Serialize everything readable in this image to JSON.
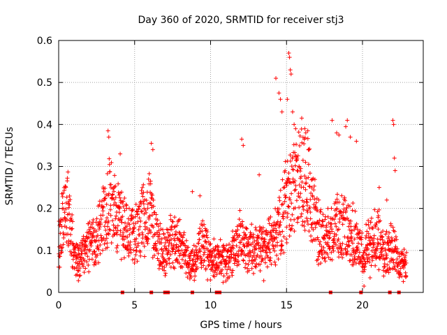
{
  "chart_data": {
    "type": "scatter",
    "title": "Day 360 of 2020, SRMTID for receiver stj3",
    "xlabel": "GPS time / hours",
    "ylabel": "SRMTID / TECUs",
    "xlim": [
      0,
      24
    ],
    "ylim": [
      0,
      0.6
    ],
    "xticks": [
      0,
      5,
      10,
      15,
      20
    ],
    "xtick_labels": [
      "0",
      "5",
      "10",
      "15",
      "20"
    ],
    "yticks": [
      0,
      0.1,
      0.2,
      0.3,
      0.4,
      0.5,
      0.6
    ],
    "ytick_labels": [
      "0",
      "0.1",
      "0.2",
      "0.3",
      "0.4",
      "0.5",
      "0.6"
    ],
    "grid": true,
    "marker": "+",
    "color": "#ff0000",
    "series": [
      {
        "name": "SRMTID",
        "profile": {
          "t": [
            0,
            0.3,
            0.6,
            1.0,
            1.5,
            2.0,
            2.5,
            3.0,
            3.3,
            3.7,
            4.2,
            5.0,
            5.5,
            6.0,
            6.5,
            7.0,
            7.5,
            8.0,
            8.5,
            9.0,
            9.5,
            10.0,
            10.5,
            11.0,
            11.5,
            12.0,
            12.5,
            13.0,
            13.5,
            14.0,
            14.5,
            15.0,
            15.5,
            16.0,
            16.5,
            17.0,
            17.5,
            18.0,
            18.5,
            19.0,
            19.5,
            20.0,
            20.5,
            21.0,
            21.5,
            22.0,
            22.5,
            22.9
          ],
          "level": [
            0.12,
            0.18,
            0.2,
            0.09,
            0.08,
            0.11,
            0.13,
            0.17,
            0.22,
            0.2,
            0.16,
            0.13,
            0.18,
            0.2,
            0.12,
            0.09,
            0.13,
            0.11,
            0.07,
            0.08,
            0.12,
            0.07,
            0.08,
            0.07,
            0.09,
            0.13,
            0.1,
            0.1,
            0.11,
            0.12,
            0.15,
            0.22,
            0.24,
            0.27,
            0.25,
            0.15,
            0.13,
            0.14,
            0.16,
            0.15,
            0.13,
            0.09,
            0.12,
            0.13,
            0.09,
            0.11,
            0.06,
            0.07
          ]
        },
        "points": [
          [
            3.25,
            0.385
          ],
          [
            3.3,
            0.37
          ],
          [
            4.05,
            0.33
          ],
          [
            6.1,
            0.355
          ],
          [
            6.2,
            0.34
          ],
          [
            8.8,
            0.24
          ],
          [
            9.3,
            0.23
          ],
          [
            12.05,
            0.365
          ],
          [
            12.15,
            0.35
          ],
          [
            13.2,
            0.28
          ],
          [
            14.3,
            0.51
          ],
          [
            14.5,
            0.475
          ],
          [
            14.6,
            0.46
          ],
          [
            14.7,
            0.43
          ],
          [
            15.05,
            0.46
          ],
          [
            15.15,
            0.57
          ],
          [
            15.2,
            0.56
          ],
          [
            15.25,
            0.53
          ],
          [
            15.3,
            0.52
          ],
          [
            15.4,
            0.43
          ],
          [
            15.5,
            0.4
          ],
          [
            15.6,
            0.39
          ],
          [
            16.0,
            0.415
          ],
          [
            16.2,
            0.39
          ],
          [
            16.4,
            0.385
          ],
          [
            18.0,
            0.41
          ],
          [
            18.3,
            0.38
          ],
          [
            18.45,
            0.375
          ],
          [
            18.9,
            0.395
          ],
          [
            19.0,
            0.41
          ],
          [
            19.2,
            0.37
          ],
          [
            19.6,
            0.36
          ],
          [
            21.1,
            0.25
          ],
          [
            21.6,
            0.22
          ],
          [
            22.0,
            0.41
          ],
          [
            22.05,
            0.4
          ],
          [
            22.1,
            0.32
          ],
          [
            22.15,
            0.29
          ],
          [
            9.8,
            0.03
          ],
          [
            13.5,
            0.028
          ],
          [
            1.3,
            0.028
          ],
          [
            20.1,
            0.015
          ],
          [
            20.5,
            0.035
          ]
        ],
        "zero_points": [
          4.2,
          6.1,
          7.0,
          7.2,
          8.8,
          10.4,
          10.6,
          17.9,
          19.9,
          21.8,
          22.4
        ]
      }
    ]
  }
}
